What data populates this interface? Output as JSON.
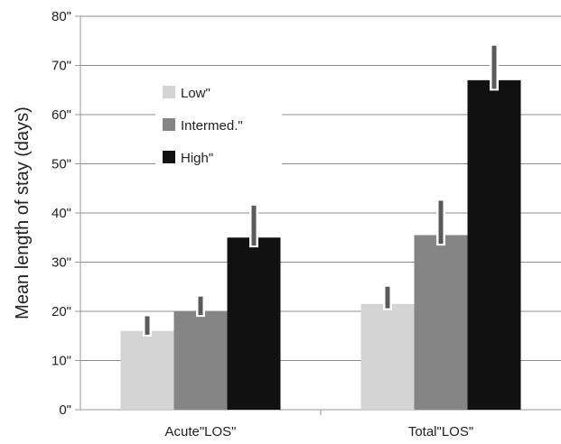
{
  "chart_data": {
    "type": "bar",
    "ylabel": "Mean length of stay (days)",
    "ylim": [
      0,
      80
    ],
    "yticks": [
      "0\"",
      "10\"",
      "20\"",
      "30\"",
      "40\"",
      "50\"",
      "60\"",
      "70\"",
      "80\""
    ],
    "ytick_values": [
      0,
      10,
      20,
      30,
      40,
      50,
      60,
      70,
      80
    ],
    "categories": [
      "Acute\"LOS\"",
      "Total\"LOS\""
    ],
    "series": [
      {
        "name": "Low\"",
        "color": "#d4d4d4",
        "values": [
          16,
          21.5
        ],
        "error_upper": [
          19,
          25
        ]
      },
      {
        "name": "Intermed.\"",
        "color": "#858585",
        "values": [
          20,
          35.5
        ],
        "error_upper": [
          23,
          42.5
        ]
      },
      {
        "name": "High\"",
        "color": "#111111",
        "values": [
          35,
          67
        ],
        "error_upper": [
          41.5,
          74
        ]
      }
    ],
    "grid": "horizontal",
    "legend_position": "upper-left inside"
  }
}
